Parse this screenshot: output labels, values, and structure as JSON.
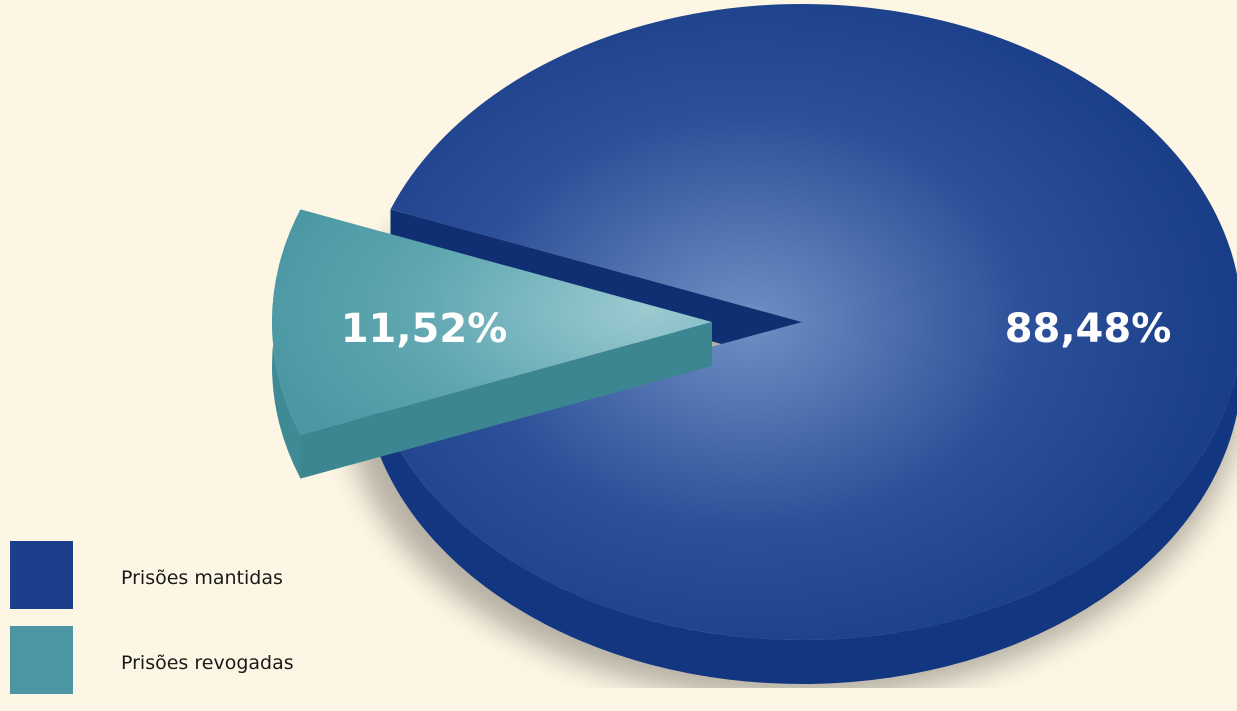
{
  "chart_data": {
    "type": "pie",
    "style": "3d-exploded",
    "slices": [
      {
        "name": "Prisões mantidas",
        "value": 88.48,
        "label": "88,48%",
        "color": "#1b3f8b",
        "exploded": false
      },
      {
        "name": "Prisões revogadas",
        "value": 11.52,
        "label": "11,52%",
        "color": "#4a97a3",
        "exploded": true
      }
    ],
    "legend": {
      "placement": "bottom-left",
      "entries": [
        "Prisões mantidas",
        "Prisões revogadas"
      ]
    },
    "title": ""
  },
  "colors": {
    "background": "#fdf6e4",
    "mantidas": "#1b3f8b",
    "revogadas": "#4a97a3"
  }
}
